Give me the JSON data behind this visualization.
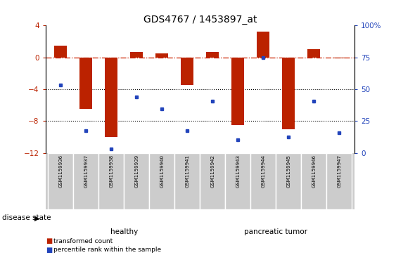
{
  "title": "GDS4767 / 1453897_at",
  "samples": [
    "GSM1159936",
    "GSM1159937",
    "GSM1159938",
    "GSM1159939",
    "GSM1159940",
    "GSM1159941",
    "GSM1159942",
    "GSM1159943",
    "GSM1159944",
    "GSM1159945",
    "GSM1159946",
    "GSM1159947"
  ],
  "transformed_counts": [
    1.5,
    -6.5,
    -10.0,
    0.7,
    0.5,
    -3.5,
    0.7,
    -8.5,
    3.2,
    -9.0,
    1.0,
    -0.1
  ],
  "percentile_y_vals": [
    -3.5,
    -9.2,
    -11.5,
    -5.0,
    -6.5,
    -9.2,
    -5.5,
    -10.3,
    0.0,
    -10.0,
    -5.5,
    -9.5
  ],
  "ylim_left": [
    -12,
    4
  ],
  "yticks_left": [
    -12,
    -8,
    -4,
    0,
    4
  ],
  "yticks_right": [
    0,
    25,
    50,
    75,
    100
  ],
  "bar_color": "#bb2200",
  "dot_color": "#2244bb",
  "healthy_color": "#88ee88",
  "tumor_color": "#55cc55",
  "dashed_line_color": "#cc2200",
  "legend_bar_label": "transformed count",
  "legend_dot_label": "percentile rank within the sample",
  "disease_state_label": "disease state",
  "healthy_label": "healthy",
  "tumor_label": "pancreatic tumor",
  "label_bg_color": "#cccccc",
  "label_edge_color": "#ffffff"
}
